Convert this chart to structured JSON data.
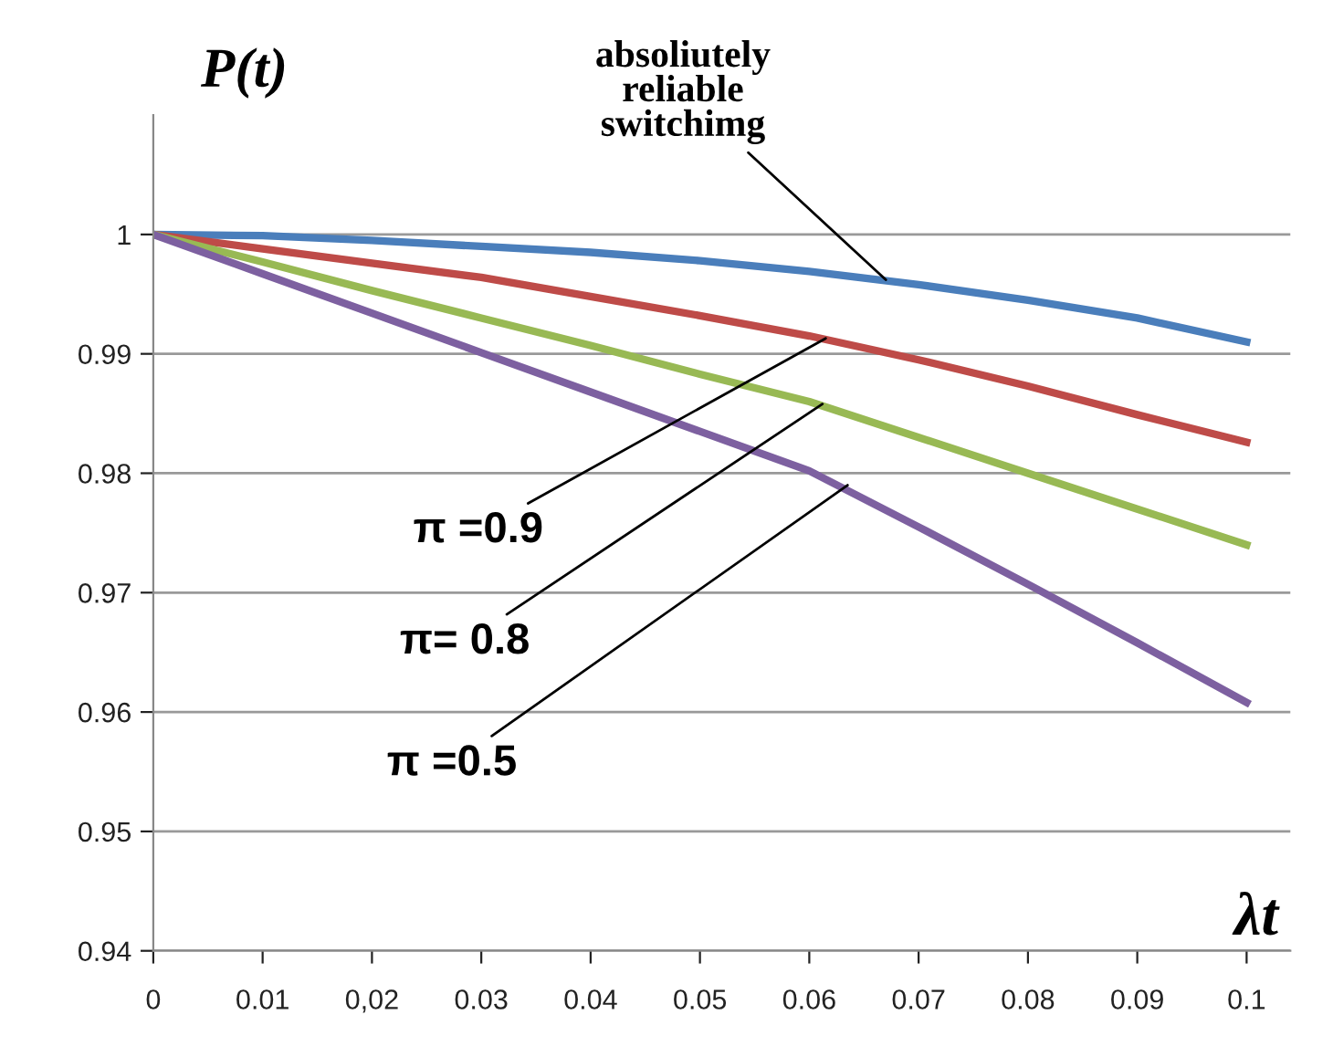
{
  "chart_data": {
    "type": "line",
    "xlabel": "λt",
    "ylabel": "P(t)",
    "x": [
      0,
      0.01,
      0.02,
      0.03,
      0.04,
      0.05,
      0.06,
      0.07,
      0.08,
      0.09,
      0.1
    ],
    "xlim": [
      0,
      0.104
    ],
    "xticks": [
      0,
      0.01,
      {
        "value": 0.02,
        "label": "0,02"
      },
      0.03,
      0.04,
      0.05,
      0.06,
      0.07,
      0.08,
      0.09,
      0.1
    ],
    "ylim": [
      0.94,
      1.01
    ],
    "yticks": [
      0.94,
      0.95,
      0.96,
      0.97,
      0.98,
      0.99,
      1
    ],
    "grid": "y",
    "legend": false,
    "marker": "none",
    "line_style": "solid",
    "series": [
      {
        "color": "#4a7ebb",
        "values": [
          1,
          0.9999,
          0.9995,
          0.999,
          0.9985,
          0.9978,
          0.9969,
          0.9958,
          0.9945,
          0.993,
          0.991
        ]
      },
      {
        "color": "#be4b48",
        "values": [
          1,
          0.9988,
          0.9976,
          0.9964,
          0.9948,
          0.9932,
          0.9915,
          0.9895,
          0.9873,
          0.9849,
          0.9826
        ]
      },
      {
        "color": "#98b954",
        "values": [
          1,
          0.9977,
          0.9953,
          0.993,
          0.9907,
          0.9883,
          0.986,
          0.983,
          0.98,
          0.977,
          0.974
        ]
      },
      {
        "color": "#7d60a0",
        "values": [
          1,
          0.9967,
          0.9934,
          0.9901,
          0.9868,
          0.9835,
          0.9802,
          0.9755,
          0.9707,
          0.9658,
          0.9608
        ]
      }
    ],
    "annotations": [
      {
        "text": "absoliutely\nreliable\nswitchimg",
        "x": 0.067,
        "y": 0.9962
      },
      {
        "text": "π =0.9",
        "x": 0.0615,
        "y": 0.9913
      },
      {
        "text": "π= 0.8",
        "x": 0.0612,
        "y": 0.9858
      },
      {
        "text": "π =0.5",
        "x": 0.0635,
        "y": 0.979
      }
    ]
  }
}
